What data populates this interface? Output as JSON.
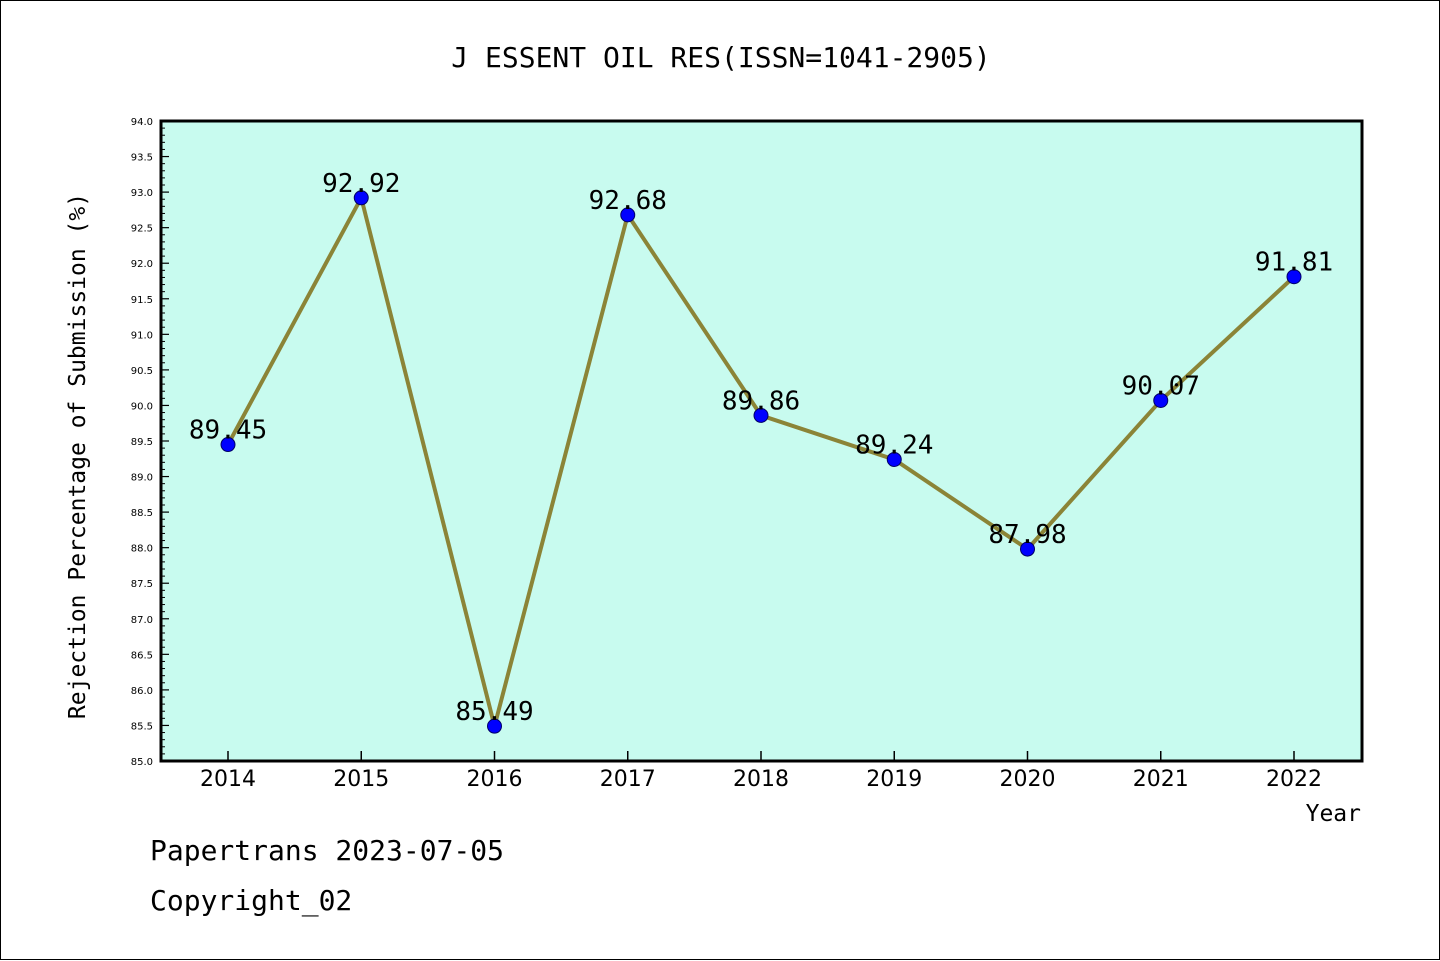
{
  "colors": {
    "plot_background": "#c8fbef",
    "line": "#8b8437",
    "marker": "#0000ff",
    "axis": "#000000"
  },
  "chart_data": {
    "type": "line",
    "title": "J ESSENT OIL RES(ISSN=1041-2905)",
    "xlabel": "Year",
    "ylabel": "Rejection Percentage of Submission (%)",
    "categories": [
      "2014",
      "2015",
      "2016",
      "2017",
      "2018",
      "2019",
      "2020",
      "2021",
      "2022"
    ],
    "values": [
      89.45,
      92.92,
      85.49,
      92.68,
      89.86,
      89.24,
      87.98,
      90.07,
      91.81
    ],
    "data_labels": [
      "89.45",
      "92.92",
      "85.49",
      "92.68",
      "89.86",
      "89.24",
      "87.98",
      "90.07",
      "91.81"
    ],
    "ylim": [
      85.0,
      94.0
    ],
    "yticks": [
      "85.0",
      "85.5",
      "86.0",
      "86.5",
      "87.0",
      "87.5",
      "88.0",
      "88.5",
      "89.0",
      "89.5",
      "90.0",
      "90.5",
      "91.0",
      "91.5",
      "92.0",
      "92.5",
      "93.0",
      "93.5",
      "94.0"
    ],
    "grid": false,
    "legend": "none"
  },
  "footer": {
    "line1": "Papertrans 2023-07-05",
    "line2": "Copyright_02"
  }
}
